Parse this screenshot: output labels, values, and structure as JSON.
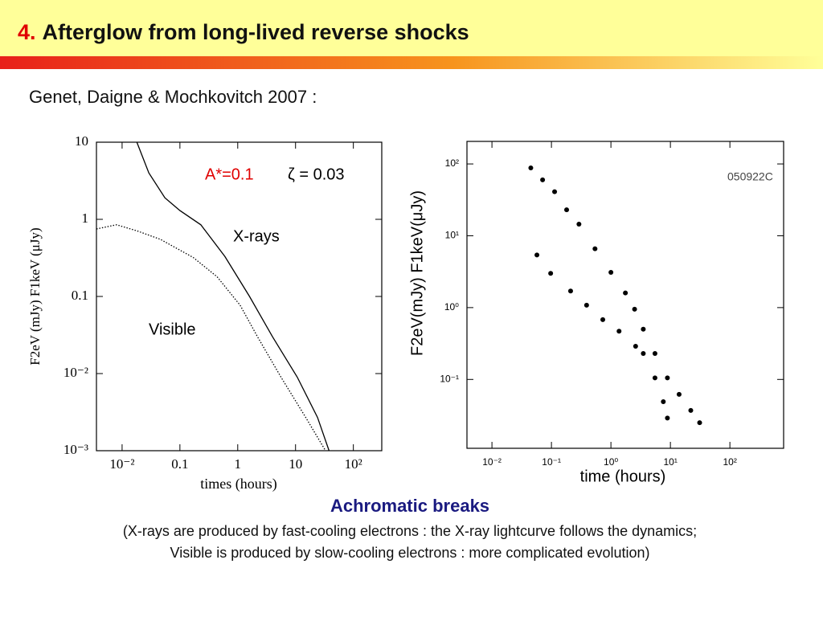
{
  "header": {
    "number": "4.",
    "title": "Afterglow from long-lived reverse shocks",
    "subtitle": "Genet, Daigne & Mochkovitch 2007 :"
  },
  "chart_data": [
    {
      "type": "line",
      "xlabel": "times (hours)",
      "ylabel": "F2eV (mJy)   F1keV (μJy)",
      "log_x": true,
      "log_y": true,
      "xlim": [
        0.0036,
        310
      ],
      "ylim": [
        0.001,
        10
      ],
      "xticks": [
        {
          "value": 0.01,
          "label": "10⁻²"
        },
        0.1,
        1,
        10,
        {
          "value": 100,
          "label": "10²"
        }
      ],
      "yticks": [
        {
          "value": 0.001,
          "label": "10⁻³"
        },
        {
          "value": 0.01,
          "label": "10⁻²"
        },
        0.1,
        1,
        10
      ],
      "series": [
        {
          "name": "X-rays",
          "color": "#000000",
          "style": "solid",
          "x": [
            0.018,
            0.029,
            0.055,
            0.1,
            0.23,
            0.6,
            1.6,
            4,
            10.7,
            24,
            38
          ],
          "values": [
            10,
            4.0,
            1.9,
            1.3,
            0.85,
            0.33,
            0.1,
            0.03,
            0.009,
            0.0027,
            0.001
          ]
        },
        {
          "name": "Visible",
          "color": "#000000",
          "style": "dotted",
          "x": [
            0.0036,
            0.008,
            0.018,
            0.046,
            0.17,
            0.44,
            1.1,
            2.2,
            5.6,
            15,
            33
          ],
          "values": [
            0.75,
            0.85,
            0.71,
            0.55,
            0.32,
            0.18,
            0.077,
            0.03,
            0.009,
            0.0027,
            0.001
          ]
        }
      ],
      "annotations": [
        {
          "text": "A*=0.1",
          "color": "#e00000"
        },
        {
          "text": "ζ = 0.03",
          "color": "#000000"
        }
      ]
    },
    {
      "type": "scatter",
      "xlabel": "time (hours)",
      "ylabel": "F2eV(mJy)  F1keV(μJy)",
      "log_x": true,
      "log_y": true,
      "xlim": [
        0.0038,
        800
      ],
      "ylim": [
        0.011,
        206
      ],
      "xticks": [
        {
          "value": 0.01,
          "label": "10⁻²"
        },
        {
          "value": 0.1,
          "label": "10⁻¹"
        },
        {
          "value": 1,
          "label": "10⁰"
        },
        {
          "value": 10,
          "label": "10¹"
        },
        {
          "value": 100,
          "label": "10²"
        }
      ],
      "yticks": [
        {
          "value": 0.1,
          "label": "10⁻¹"
        },
        {
          "value": 1,
          "label": "10⁰"
        },
        {
          "value": 10,
          "label": "10¹"
        },
        {
          "value": 100,
          "label": "10²"
        }
      ],
      "series": [
        {
          "color": "#000000",
          "x": [
            0.045,
            0.071,
            0.113,
            0.18,
            0.29,
            0.54,
            1,
            1.75,
            2.5,
            3.5,
            5.5,
            8.9,
            14,
            22,
            31
          ],
          "values": [
            88,
            60,
            41,
            23,
            14.5,
            6.6,
            3.1,
            1.6,
            0.95,
            0.5,
            0.23,
            0.105,
            0.062,
            0.037,
            0.025
          ]
        },
        {
          "color": "#000000",
          "x": [
            0.057,
            0.097,
            0.21,
            0.39,
            0.73,
            1.37,
            2.6,
            3.5,
            5.5,
            7.6,
            8.9
          ],
          "values": [
            5.4,
            3.0,
            1.7,
            1.08,
            0.68,
            0.47,
            0.29,
            0.23,
            0.105,
            0.049,
            0.029
          ]
        }
      ],
      "annotations": [
        {
          "text": "050922C",
          "color": "#444444"
        }
      ]
    }
  ],
  "caption": {
    "heading": "Achromatic breaks",
    "lines": [
      "(X-rays are produced by fast-cooling electrons : the X-ray lightcurve follows the dynamics;",
      "Visible is produced by slow-cooling electrons : more complicated evolution)"
    ]
  }
}
